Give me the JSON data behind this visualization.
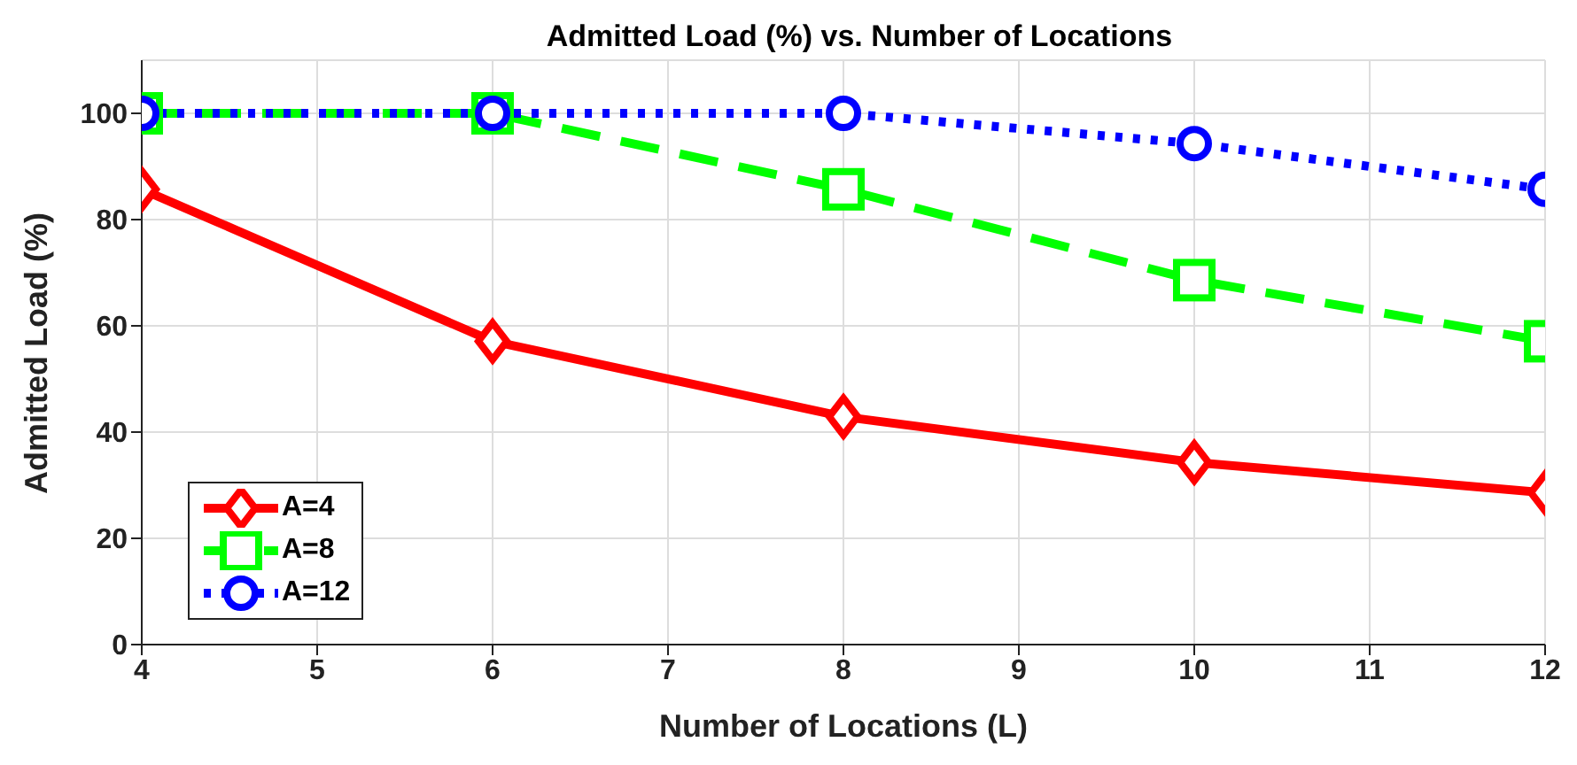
{
  "chart_data": {
    "type": "line",
    "title": "Admitted Load (%) vs. Number of Locations",
    "xlabel": "Number of Locations (L)",
    "ylabel": "Admitted Load (%)",
    "x": [
      4,
      6,
      8,
      10,
      12
    ],
    "series": [
      {
        "name": "A=4",
        "color": "#ff0000",
        "marker": "diamond",
        "line_style": "solid",
        "values": [
          85.7,
          57.1,
          42.9,
          34.3,
          28.6
        ]
      },
      {
        "name": "A=8",
        "color": "#00ff00",
        "marker": "square",
        "line_style": "dashed",
        "values": [
          100,
          100,
          85.7,
          68.6,
          57.1
        ]
      },
      {
        "name": "A=12",
        "color": "#0000ff",
        "marker": "circle",
        "line_style": "dotted",
        "values": [
          100,
          100,
          100,
          94.3,
          85.7
        ]
      }
    ],
    "xlim": [
      4,
      12
    ],
    "xticks": [
      4,
      5,
      6,
      7,
      8,
      9,
      10,
      11,
      12
    ],
    "ylim": [
      0,
      110
    ],
    "yticks": [
      0,
      20,
      40,
      60,
      80,
      100
    ],
    "grid": true,
    "legend": "bottom left"
  }
}
